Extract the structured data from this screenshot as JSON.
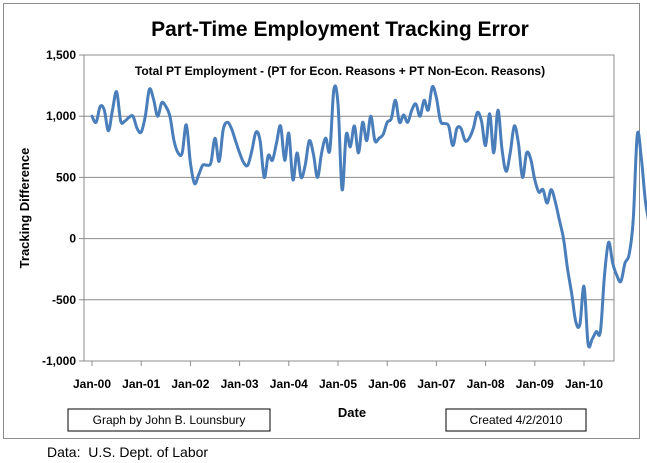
{
  "chart_data": {
    "type": "line",
    "title": "Part-Time Employment Tracking Error",
    "subtitle": "Total  PT Employment - (PT for Econ. Reasons + PT Non-Econ. Reasons)",
    "xlabel": "Date",
    "ylabel": "Tracking Difference",
    "ylim": [
      -1000,
      1500
    ],
    "yticks": [
      "1,500",
      "1,000",
      "500",
      "0",
      "-500",
      "-1,000"
    ],
    "ytick_values": [
      1500,
      1000,
      500,
      0,
      -500,
      -1000
    ],
    "xticks": [
      "Jan-00",
      "Jan-01",
      "Jan-02",
      "Jan-03",
      "Jan-04",
      "Jan-05",
      "Jan-06",
      "Jan-07",
      "Jan-08",
      "Jan-09",
      "Jan-10"
    ],
    "x_start": "Jan-00",
    "grid": "horizontal",
    "line_color": "#4a7ebb",
    "series": [
      {
        "values": [
          1000,
          950,
          1080,
          1050,
          880,
          1050,
          1200,
          960,
          960,
          990,
          1000,
          900,
          870,
          1000,
          1220,
          1140,
          1000,
          1110,
          1080,
          1000,
          800,
          700,
          700,
          930,
          620,
          450,
          520,
          600,
          600,
          620,
          820,
          630,
          890,
          950,
          900,
          800,
          700,
          620,
          600,
          720,
          870,
          800,
          500,
          680,
          640,
          780,
          920,
          640,
          860,
          480,
          700,
          500,
          600,
          800,
          690,
          500,
          700,
          820,
          720,
          1220,
          1100,
          400,
          850,
          750,
          920,
          700,
          950,
          800,
          1000,
          800,
          820,
          850,
          950,
          980,
          1130,
          950,
          1010,
          950,
          1050,
          1100,
          1000,
          1130,
          1050,
          1240,
          1150,
          960,
          940,
          920,
          760,
          900,
          900,
          800,
          820,
          900,
          1030,
          960,
          760,
          1020,
          700,
          1050,
          730,
          550,
          700,
          920,
          780,
          500,
          700,
          650,
          480,
          380,
          400,
          290,
          400,
          300,
          150,
          0,
          -250,
          -450,
          -680,
          -700,
          -390,
          -860,
          -820,
          -760,
          -760,
          -300,
          -30,
          -200,
          -300,
          -350,
          -200,
          -130,
          150,
          850,
          650,
          300,
          110
        ]
      }
    ]
  },
  "notes": {
    "author": "Graph by John B. Lounsbury",
    "created": "Created 4/2/2010"
  },
  "source": "Data:  U.S. Dept. of Labor"
}
